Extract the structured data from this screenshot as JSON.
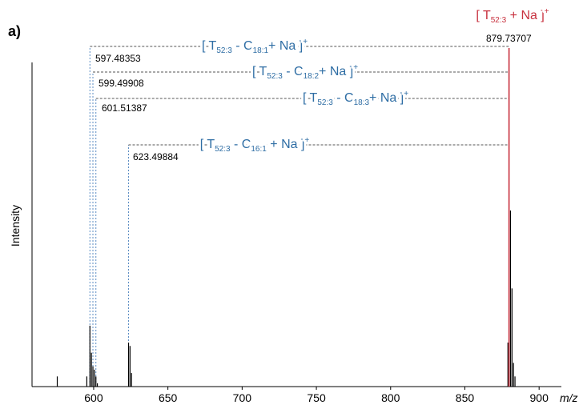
{
  "chart_data": {
    "type": "spectrum",
    "panel_label": "a)",
    "x_label": "m/z",
    "y_label": "Intensity",
    "xlim": [
      558.5,
      915
    ],
    "xticks": [
      600,
      650,
      700,
      750,
      800,
      850,
      900
    ],
    "ylim": [
      0,
      100
    ],
    "series": [
      {
        "color": "#000000",
        "x": [
          575.5,
          595.4,
          597.48353,
          598.49,
          599.49908,
          600.5,
          601.51387,
          602.5,
          623.49884,
          624.5,
          625.5,
          879.0,
          880.74,
          881.74,
          882.75,
          883.75
        ],
        "values": [
          3,
          3,
          18,
          10,
          6,
          5,
          3,
          1,
          13,
          12,
          4,
          13,
          52,
          29,
          7,
          3
        ]
      },
      {
        "color": "#c8323f",
        "x": [
          879.73707
        ],
        "values": [
          100
        ]
      }
    ],
    "annotations": [
      {
        "parts": [
          "[ T",
          "52:3",
          " + Na ]",
          "+"
        ],
        "mz": 879.73707,
        "color": "#c8323f"
      },
      {
        "parts": [
          "[ T",
          "52:3",
          " - C",
          "18:1",
          "+ Na ]",
          "+"
        ],
        "mz": 597.48353,
        "color": "#2e6da4"
      },
      {
        "parts": [
          "[ T",
          "52:3",
          " - C",
          "18:2",
          "+ Na ]",
          "+"
        ],
        "mz": 599.49908,
        "color": "#2e6da4"
      },
      {
        "parts": [
          "[ T",
          "52:3",
          " - C",
          "18:3",
          "+ Na ]",
          "+"
        ],
        "mz": 601.51387,
        "color": "#2e6da4"
      },
      {
        "parts": [
          "[ T",
          "52:3",
          " - C",
          "16:1",
          " + Na ]",
          "+"
        ],
        "mz": 623.49884,
        "color": "#2e6da4"
      }
    ]
  }
}
